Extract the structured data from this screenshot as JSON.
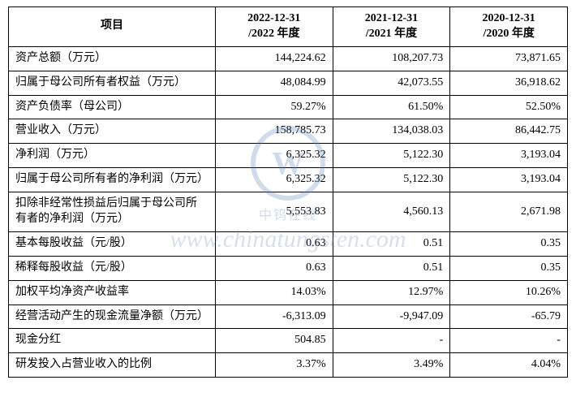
{
  "table": {
    "type": "table",
    "border_color": "#000000",
    "background_color": "#ffffff",
    "text_color": "#000000",
    "font_size_pt": 11,
    "font_family": "SimSun",
    "header": {
      "item_label": "项目",
      "year_labels": [
        "2022-12-31\n/2022 年度",
        "2021-12-31\n/2021 年度",
        "2020-12-31\n/2020 年度"
      ]
    },
    "column_widths_pct": [
      37,
      21,
      21,
      21
    ],
    "header_align": "center",
    "item_align": "left",
    "value_align": "right",
    "rows": [
      {
        "item": "资产总额（万元）",
        "v": [
          "144,224.62",
          "108,207.73",
          "73,871.65"
        ]
      },
      {
        "item": "归属于母公司所有者权益（万元）",
        "v": [
          "48,084.99",
          "42,073.55",
          "36,918.62"
        ]
      },
      {
        "item": "资产负债率（母公司）",
        "v": [
          "59.27%",
          "61.50%",
          "52.50%"
        ]
      },
      {
        "item": "营业收入（万元）",
        "v": [
          "158,785.73",
          "134,038.03",
          "86,442.75"
        ]
      },
      {
        "item": "净利润（万元）",
        "v": [
          "6,325.32",
          "5,122.30",
          "3,193.04"
        ]
      },
      {
        "item": "归属于母公司所有者的净利润（万元）",
        "v": [
          "6,325.32",
          "5,122.30",
          "3,193.04"
        ]
      },
      {
        "item": "扣除非经常性损益后归属于母公司所有者的净利润（万元）",
        "v": [
          "5,553.83",
          "4,560.13",
          "2,671.98"
        ]
      },
      {
        "item": "基本每股收益（元/股）",
        "v": [
          "0.63",
          "0.51",
          "0.35"
        ]
      },
      {
        "item": "稀释每股收益（元/股）",
        "v": [
          "0.63",
          "0.51",
          "0.35"
        ]
      },
      {
        "item": "加权平均净资产收益率",
        "v": [
          "14.03%",
          "12.97%",
          "10.26%"
        ]
      },
      {
        "item": "经营活动产生的现金流量净额（万元）",
        "v": [
          "-6,313.09",
          "-9,947.09",
          "-65.79"
        ]
      },
      {
        "item": "现金分红",
        "v": [
          "504.85",
          "-",
          "-"
        ]
      },
      {
        "item": "研发投入占营业收入的比例",
        "v": [
          "3.37%",
          "3.49%",
          "4.04%"
        ]
      }
    ]
  },
  "watermark": {
    "logo_letter": "W",
    "logo_ring_color": "#5b86b8",
    "logo_cn": "中钨在线",
    "text": "www.chinatungsten.com",
    "text_color": "#6b92bf",
    "opacity": 0.28,
    "font_style": "italic",
    "font_family": "Georgia"
  }
}
